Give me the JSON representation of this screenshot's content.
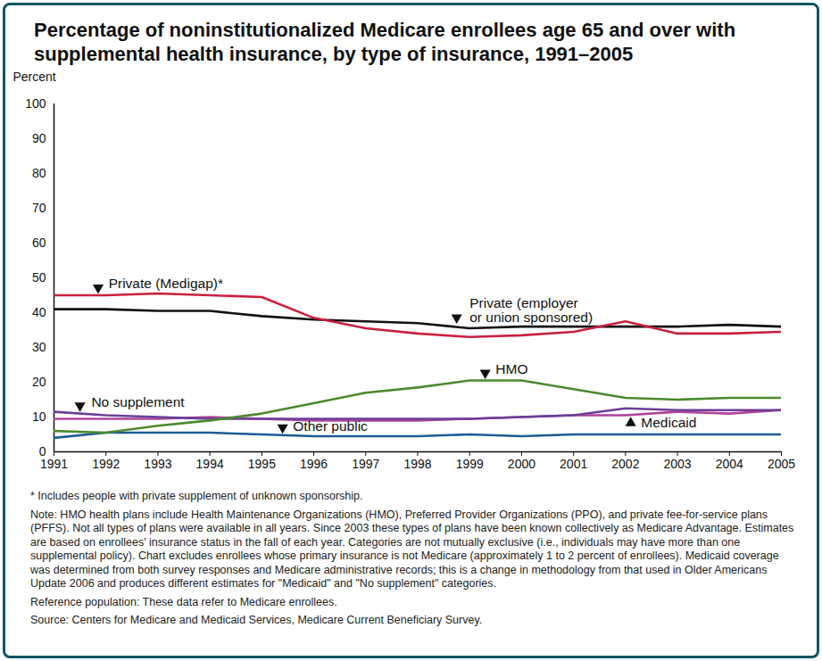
{
  "chart_data": {
    "type": "line",
    "title": "Percentage of noninstitutionalized Medicare enrollees age 65 and over with supplemental health insurance, by type of insurance, 1991–2005",
    "y_label": "Percent",
    "x": [
      1991,
      1992,
      1993,
      1994,
      1995,
      1996,
      1997,
      1998,
      1999,
      2000,
      2001,
      2002,
      2003,
      2004,
      2005
    ],
    "series": [
      {
        "name": "Private (Medigap)*",
        "color": "#c8203f",
        "values": [
          45,
          45,
          45.5,
          45,
          44.5,
          38.5,
          35.5,
          34,
          33,
          33.5,
          34.5,
          37.5,
          34,
          34,
          34.5
        ]
      },
      {
        "name": "Private (employer\nor union sponsored)",
        "color": "#111111",
        "values": [
          41,
          41,
          40.5,
          40.5,
          39,
          38,
          37.5,
          37,
          35.5,
          36,
          36,
          36,
          36,
          36.5,
          36
        ]
      },
      {
        "name": "HMO",
        "color": "#4b8a2e",
        "values": [
          6,
          5.5,
          7.5,
          9,
          11,
          14,
          17,
          18.5,
          20.5,
          20.5,
          18,
          15.5,
          15,
          15.5,
          15.5
        ]
      },
      {
        "name": "No supplement",
        "color": "#6b3f98",
        "values": [
          11.5,
          10.5,
          10,
          9.5,
          9.5,
          9.5,
          9.5,
          9.5,
          9.5,
          10,
          10.5,
          12.5,
          12,
          12,
          12
        ]
      },
      {
        "name": "Medicaid",
        "color": "#b0449a",
        "values": [
          9.5,
          9.5,
          9.5,
          10,
          9.5,
          9,
          9,
          9,
          9.5,
          10,
          10.5,
          10.5,
          11.5,
          11,
          12
        ]
      },
      {
        "name": "Other public",
        "color": "#1f5c96",
        "values": [
          4,
          5.5,
          5.5,
          5.5,
          5,
          4.5,
          4.5,
          4.5,
          5,
          4.5,
          5,
          5,
          5,
          5,
          5
        ]
      }
    ],
    "xlim": [
      1991,
      2005
    ],
    "xticks": [
      1991,
      1992,
      1993,
      1994,
      1995,
      1996,
      1997,
      1998,
      1999,
      2000,
      2001,
      2002,
      2003,
      2004,
      2005
    ],
    "ylim": [
      0,
      100
    ],
    "yticks": [
      0,
      10,
      20,
      30,
      40,
      50,
      60,
      70,
      80,
      90,
      100
    ],
    "grid": false,
    "notes": [
      "* Includes people with private supplement of unknown sponsorship.",
      "Note: HMO health plans include Health Maintenance Organizations (HMO), Preferred Provider Organizations (PPO), and private fee-for-service plans (PFFS). Not all types of plans were available in all years. Since 2003 these types of plans have been known collectively as Medicare Advantage. Estimates are based on enrollees' insurance status in the fall of each year. Categories are not mutually exclusive (i.e., individuals may have more than one supplemental policy). Chart excludes enrollees whose primary insurance is not Medicare (approximately 1 to 2 percent of enrollees). Medicaid coverage was determined from both survey responses and Medicare administrative records; this is a change in methodology from that used in Older Americans Update 2006 and produces different estimates for \"Medicaid\" and \"No supplement\" categories.",
      "Reference population: These data refer to Medicare enrollees.",
      "Source: Centers for Medicare and Medicaid Services, Medicare Current Beneficiary Survey."
    ]
  }
}
